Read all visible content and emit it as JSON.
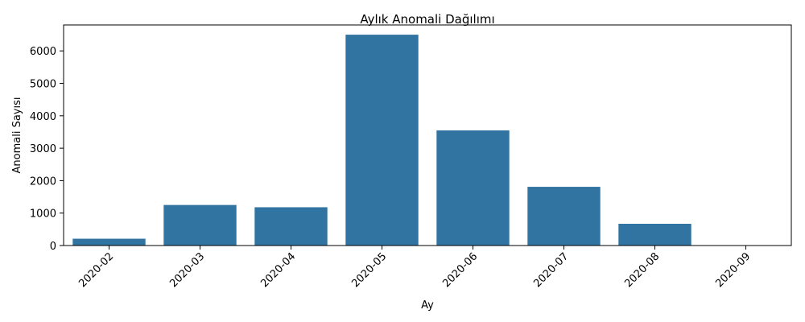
{
  "chart_data": {
    "type": "bar",
    "title": "Aylık Anomali Dağılımı",
    "xlabel": "Ay",
    "ylabel": "Anomali Sayısı",
    "categories": [
      "2020-02",
      "2020-03",
      "2020-04",
      "2020-05",
      "2020-06",
      "2020-07",
      "2020-08",
      "2020-09"
    ],
    "values": [
      210,
      1250,
      1180,
      6500,
      3550,
      1810,
      670,
      5
    ],
    "ylim": [
      0,
      6800
    ],
    "yticks": [
      0,
      1000,
      2000,
      3000,
      4000,
      5000,
      6000
    ],
    "bar_color": "#3274a1",
    "grid": false,
    "legend": "none"
  }
}
